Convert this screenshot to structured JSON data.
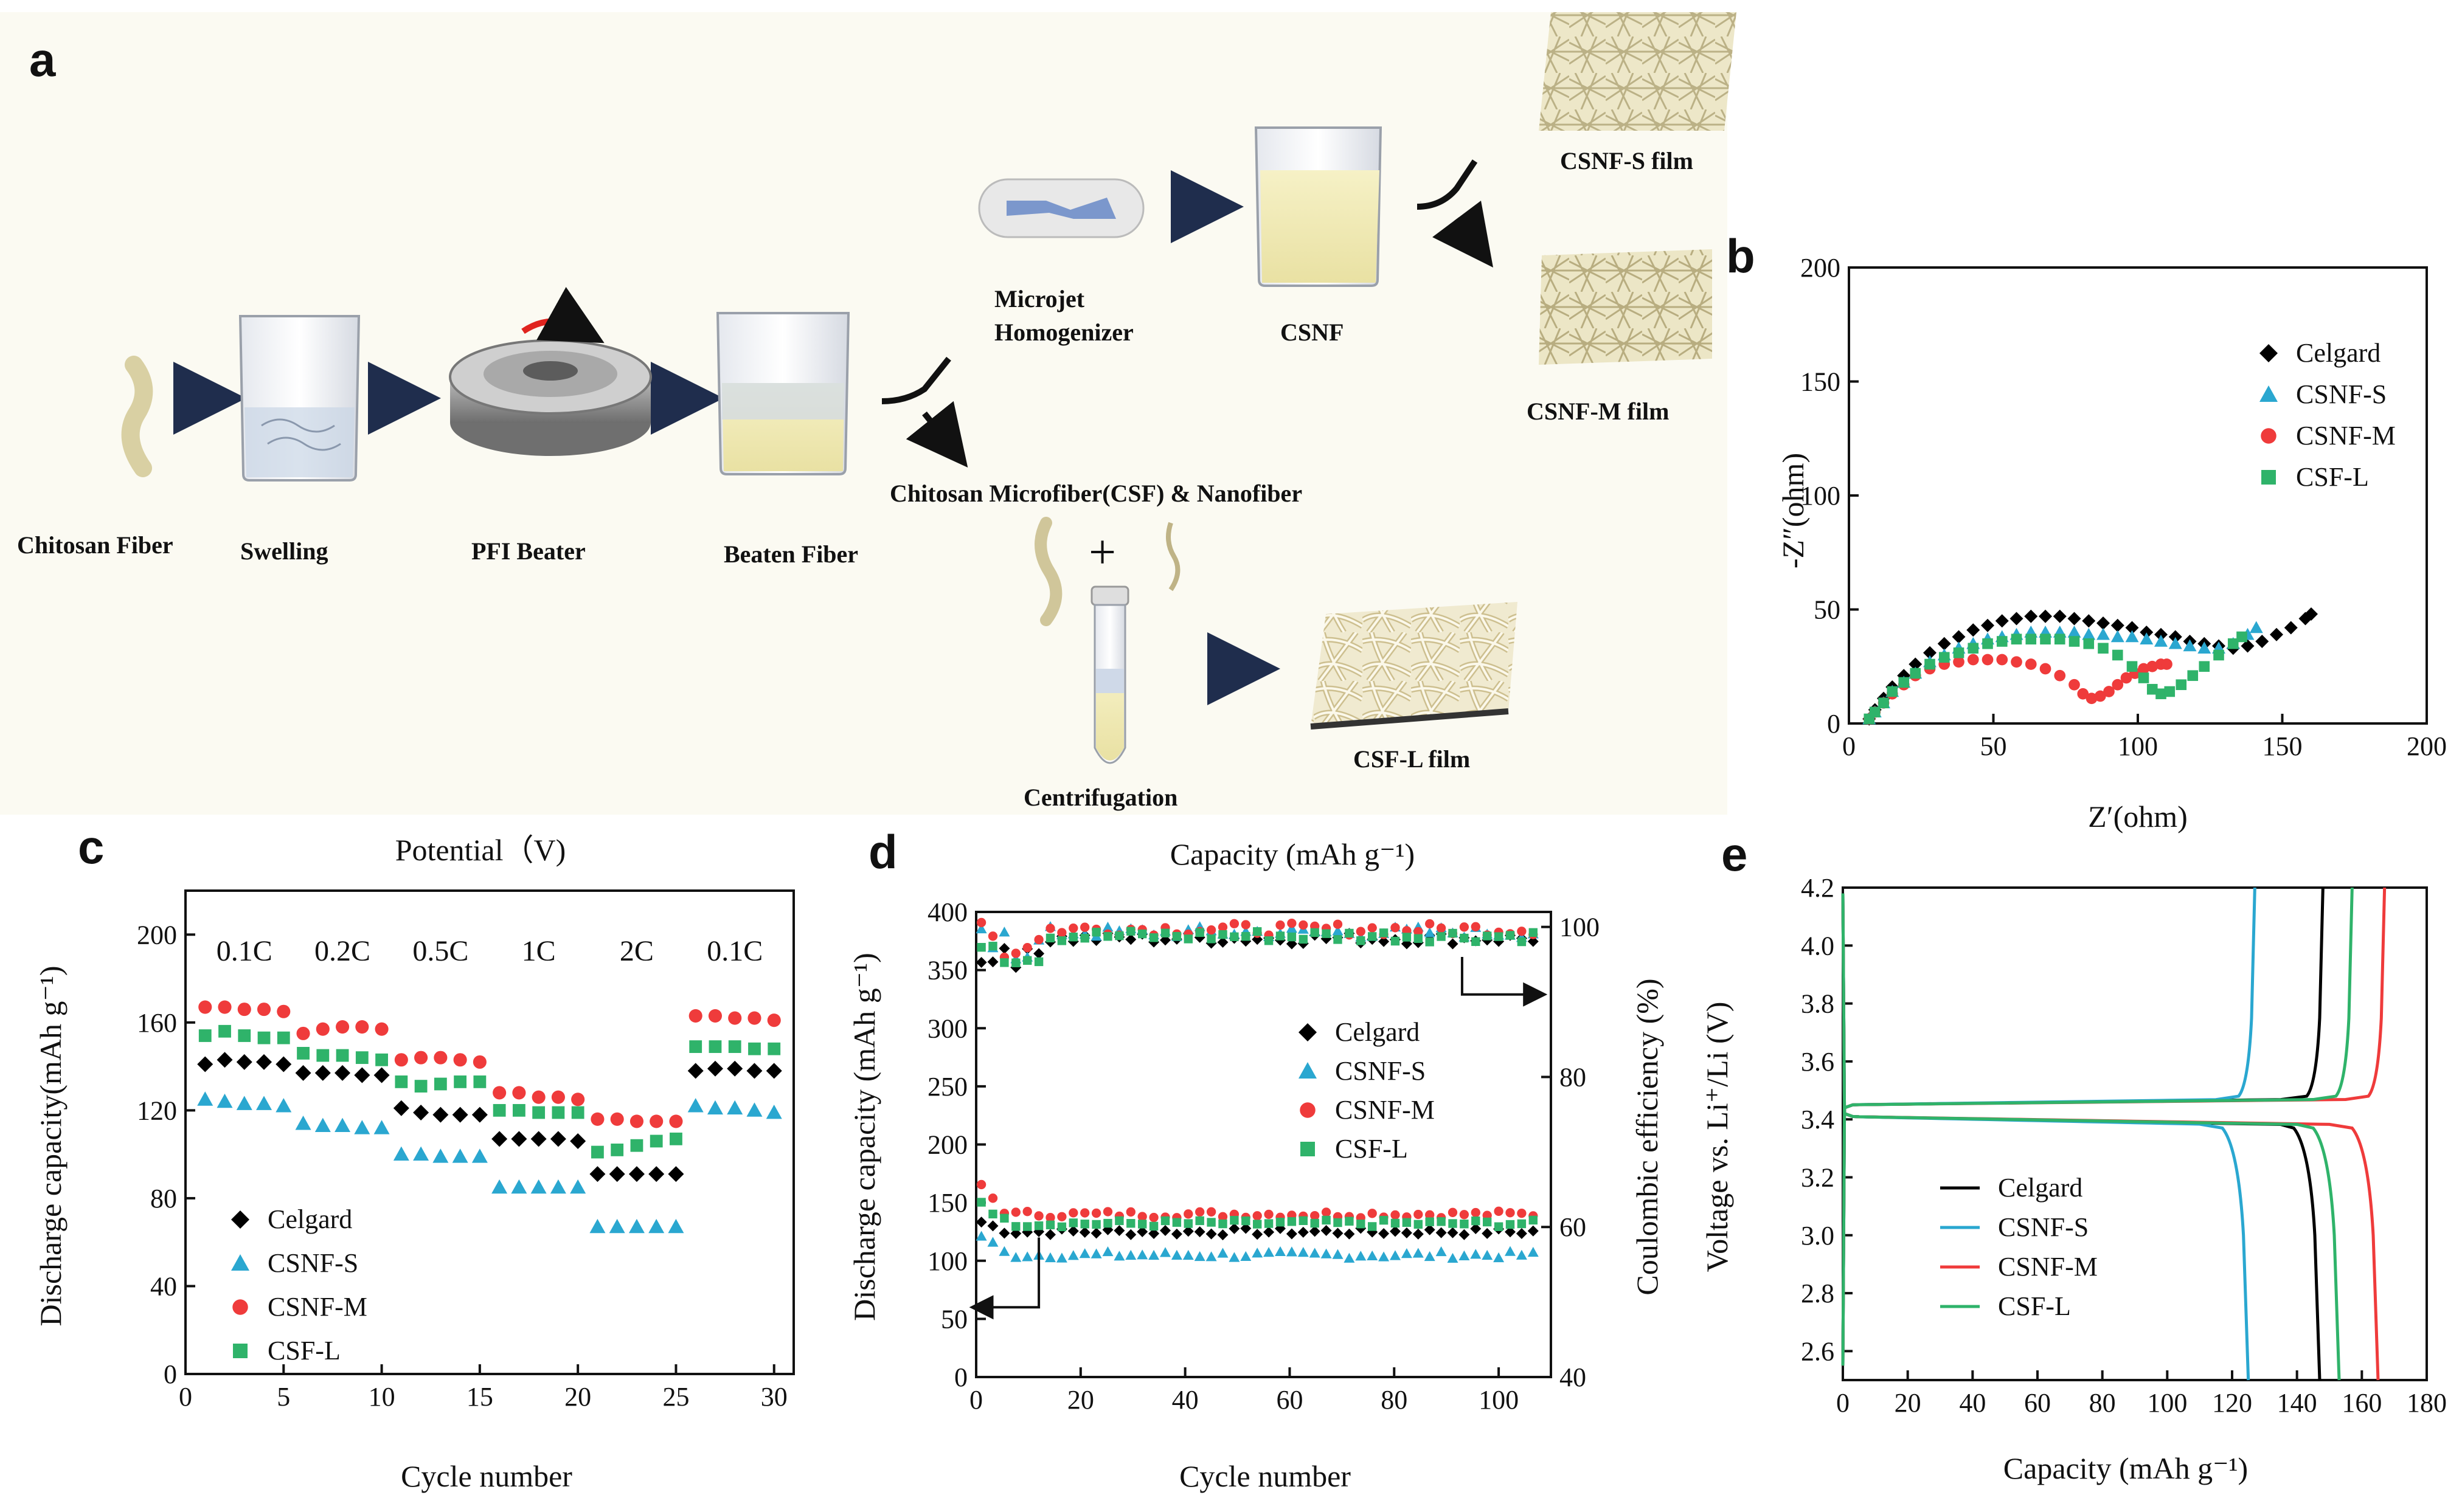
{
  "panel_a": {
    "letter": "a",
    "labels": {
      "chitosan_fiber": "Chitosan Fiber",
      "swelling": "Swelling",
      "pfi_beater": "PFI Beater",
      "beaten_fiber": "Beaten Fiber",
      "microfiber_nanofiber": "Chitosan Microfiber(CSF) & Nanofiber",
      "microjet_line1": "Microjet",
      "microjet_line2": "Homogenizer",
      "csnf": "CSNF",
      "csnf_s_film": "CSNF-S film",
      "csnf_m_film": "CSNF-M film",
      "centrifugation": "Centrifugation",
      "csf_l_film": "CSF-L film",
      "plus": "+"
    }
  },
  "colors": {
    "celgard": "#000000",
    "csnf_s": "#2aa7d0",
    "csnf_m": "#ef3b3b",
    "csf_l": "#2fb36a"
  },
  "chart_data": [
    {
      "panel": "b",
      "type": "scatter",
      "xlabel": "Z′(ohm)",
      "ylabel": "-Z″(ohm)",
      "xlim": [
        0,
        200
      ],
      "ylim": [
        0,
        200
      ],
      "xticks": [
        "0",
        "50",
        "100",
        "150",
        "200"
      ],
      "yticks": [
        "0",
        "50",
        "100",
        "150",
        "200"
      ],
      "legend": [
        "Celgard",
        "CSNF-S",
        "CSNF-M",
        "CSF-L"
      ],
      "series": [
        {
          "name": "Celgard",
          "key": "celgard",
          "marker": "diamond",
          "x": [
            7,
            9,
            12,
            15,
            19,
            23,
            28,
            33,
            38,
            43,
            48,
            53,
            58,
            63,
            68,
            73,
            78,
            83,
            88,
            93,
            98,
            103,
            108,
            113,
            118,
            123,
            128,
            133,
            138,
            143,
            148,
            153,
            158,
            160
          ],
          "y": [
            2,
            6,
            11,
            16,
            21,
            26,
            31,
            35,
            38,
            41,
            43,
            45,
            46,
            47,
            47,
            47,
            46,
            45,
            44,
            43,
            42,
            40,
            39,
            38,
            36,
            35,
            34,
            33,
            34,
            36,
            39,
            42,
            46,
            48
          ]
        },
        {
          "name": "CSNF-S",
          "key": "csnf_s",
          "marker": "triangle",
          "x": [
            7,
            9,
            12,
            15,
            19,
            23,
            28,
            33,
            38,
            43,
            48,
            53,
            58,
            63,
            68,
            73,
            78,
            83,
            88,
            93,
            98,
            103,
            108,
            113,
            118,
            123,
            128,
            133,
            138,
            141
          ],
          "y": [
            2,
            5,
            9,
            14,
            18,
            22,
            27,
            30,
            33,
            35,
            37,
            38,
            39,
            40,
            40,
            40,
            40,
            39,
            39,
            38,
            38,
            37,
            36,
            35,
            34,
            33,
            33,
            35,
            39,
            42
          ]
        },
        {
          "name": "CSNF-M",
          "key": "csnf_m",
          "marker": "circle",
          "x": [
            7,
            9,
            12,
            15,
            19,
            23,
            28,
            33,
            38,
            43,
            48,
            53,
            58,
            63,
            68,
            73,
            78,
            81,
            84,
            87,
            90,
            93,
            96,
            99,
            102,
            105,
            108,
            110
          ],
          "y": [
            2,
            5,
            9,
            13,
            17,
            21,
            24,
            26,
            27,
            28,
            28,
            28,
            27,
            26,
            24,
            21,
            17,
            13,
            11,
            12,
            14,
            17,
            20,
            22,
            24,
            25,
            26,
            26
          ]
        },
        {
          "name": "CSF-L",
          "key": "csf_l",
          "marker": "square",
          "x": [
            7,
            9,
            12,
            15,
            19,
            23,
            28,
            33,
            38,
            43,
            48,
            53,
            58,
            63,
            68,
            73,
            78,
            83,
            88,
            93,
            98,
            102,
            105,
            108,
            111,
            115,
            119,
            123,
            128,
            133,
            136
          ],
          "y": [
            2,
            5,
            9,
            14,
            18,
            22,
            26,
            29,
            31,
            33,
            35,
            36,
            37,
            37,
            37,
            37,
            36,
            35,
            33,
            30,
            25,
            20,
            15,
            13,
            14,
            17,
            21,
            25,
            30,
            35,
            38
          ]
        }
      ]
    },
    {
      "panel": "c",
      "type": "scatter",
      "title": "Potential（V)",
      "xlabel": "Cycle number",
      "ylabel": "Discharge capacity(mAh g⁻¹)",
      "xlim": [
        0,
        31
      ],
      "ylim": [
        0,
        220
      ],
      "xticks": [
        "0",
        "5",
        "10",
        "15",
        "20",
        "25",
        "30"
      ],
      "yticks": [
        "0",
        "40",
        "80",
        "120",
        "160",
        "200"
      ],
      "rate_labels": [
        "0.1C",
        "0.2C",
        "0.5C",
        "1C",
        "2C",
        "0.1C"
      ],
      "legend": [
        "Celgard",
        "CSNF-S",
        "CSNF-M",
        "CSF-L"
      ],
      "x": [
        1,
        2,
        3,
        4,
        5,
        6,
        7,
        8,
        9,
        10,
        11,
        12,
        13,
        14,
        15,
        16,
        17,
        18,
        19,
        20,
        21,
        22,
        23,
        24,
        25,
        26,
        27,
        28,
        29,
        30
      ],
      "series": [
        {
          "name": "Celgard",
          "key": "celgard",
          "marker": "diamond",
          "values": [
            141,
            143,
            142,
            142,
            141,
            137,
            137,
            137,
            136,
            136,
            121,
            119,
            118,
            118,
            118,
            107,
            107,
            107,
            107,
            106,
            91,
            91,
            91,
            91,
            91,
            138,
            139,
            139,
            138,
            138
          ]
        },
        {
          "name": "CSNF-S",
          "key": "csnf_s",
          "marker": "triangle",
          "values": [
            125,
            124,
            123,
            123,
            122,
            114,
            113,
            113,
            112,
            112,
            100,
            100,
            99,
            99,
            99,
            85,
            85,
            85,
            85,
            85,
            67,
            67,
            67,
            67,
            67,
            122,
            121,
            121,
            120,
            119
          ]
        },
        {
          "name": "CSNF-M",
          "key": "csnf_m",
          "marker": "circle",
          "values": [
            167,
            167,
            166,
            166,
            165,
            155,
            157,
            158,
            158,
            157,
            143,
            144,
            144,
            143,
            142,
            128,
            128,
            126,
            126,
            125,
            116,
            116,
            115,
            115,
            115,
            163,
            163,
            162,
            162,
            161
          ]
        },
        {
          "name": "CSF-L",
          "key": "csf_l",
          "marker": "square",
          "values": [
            154,
            156,
            154,
            153,
            153,
            146,
            145,
            145,
            144,
            143,
            133,
            131,
            132,
            133,
            133,
            120,
            120,
            119,
            119,
            119,
            101,
            102,
            104,
            106,
            107,
            149,
            149,
            149,
            148,
            148
          ]
        }
      ]
    },
    {
      "panel": "d",
      "type": "scatter",
      "title": "Capacity (mAh g⁻¹)",
      "xlabel": "Cycle number",
      "ylabel": "Discharge capacity (mAh g⁻¹)",
      "y2label": "Coulombic efficiency (%)",
      "xlim": [
        0,
        110
      ],
      "ylim": [
        0,
        400
      ],
      "y2lim": [
        40,
        102
      ],
      "xticks": [
        "0",
        "20",
        "40",
        "60",
        "80",
        "100"
      ],
      "yticks": [
        "0",
        "50",
        "100",
        "150",
        "200",
        "250",
        "300",
        "350",
        "400"
      ],
      "y2ticks": [
        "40",
        "60",
        "80",
        "100"
      ],
      "legend": [
        "Celgard",
        "CSNF-S",
        "CSNF-M",
        "CSF-L"
      ],
      "capacity_series": [
        {
          "name": "Celgard",
          "key": "celgard",
          "start": 135,
          "end": 125
        },
        {
          "name": "CSNF-S",
          "key": "csnf_s",
          "start": 125,
          "end": 105
        },
        {
          "name": "CSNF-M",
          "key": "csnf_m",
          "start": 170,
          "end": 140
        },
        {
          "name": "CSF-L",
          "key": "csf_l",
          "start": 155,
          "end": 132
        }
      ],
      "efficiency_series": [
        {
          "name": "Celgard",
          "key": "celgard",
          "mean": 98.5
        },
        {
          "name": "CSNF-S",
          "key": "csnf_s",
          "mean": 99.3
        },
        {
          "name": "CSNF-M",
          "key": "csnf_m",
          "mean": 99.7
        },
        {
          "name": "CSF-L",
          "key": "csf_l",
          "mean": 98.8
        }
      ]
    },
    {
      "panel": "e",
      "type": "line",
      "xlabel": "Capacity (mAh g⁻¹)",
      "ylabel": "Voltage vs. Li⁺/Li (V)",
      "xlim": [
        0,
        180
      ],
      "ylim": [
        2.5,
        4.2
      ],
      "xticks": [
        "0",
        "20",
        "40",
        "60",
        "80",
        "100",
        "120",
        "140",
        "160",
        "180"
      ],
      "yticks": [
        "2.6",
        "2.8",
        "3.0",
        "3.2",
        "3.4",
        "3.6",
        "3.8",
        "4.0",
        "4.2"
      ],
      "legend": [
        "Celgard",
        "CSNF-S",
        "CSNF-M",
        "CSF-L"
      ],
      "series": [
        {
          "name": "Celgard",
          "key": "celgard",
          "charge_cap": 148,
          "discharge_cap": 147
        },
        {
          "name": "CSNF-S",
          "key": "csnf_s",
          "charge_cap": 127,
          "discharge_cap": 125
        },
        {
          "name": "CSNF-M",
          "key": "csnf_m",
          "charge_cap": 167,
          "discharge_cap": 165
        },
        {
          "name": "CSF-L",
          "key": "csf_l",
          "charge_cap": 157,
          "discharge_cap": 153
        }
      ]
    }
  ]
}
